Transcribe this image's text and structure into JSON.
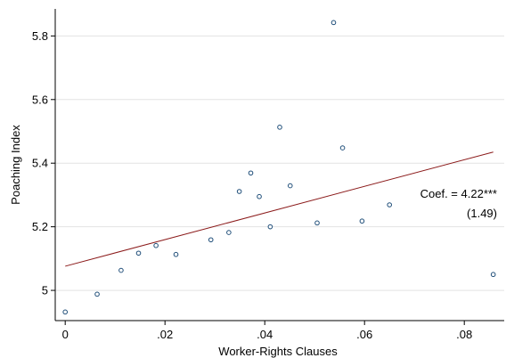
{
  "chart_data": {
    "type": "scatter",
    "xlabel": "Worker-Rights Clauses",
    "ylabel": "Poaching Index",
    "xlim": [
      -0.002,
      0.088
    ],
    "ylim": [
      4.905,
      5.885
    ],
    "x_ticks": [
      0,
      0.02,
      0.04,
      0.06,
      0.08
    ],
    "x_tick_labels": [
      "0",
      ".02",
      ".04",
      ".06",
      ".08"
    ],
    "y_ticks": [
      5,
      5.2,
      5.4,
      5.6,
      5.8
    ],
    "y_tick_labels": [
      "5",
      "5.2",
      "5.4",
      "5.6",
      "5.8"
    ],
    "grid": true,
    "points": [
      {
        "x": 0.0,
        "y": 4.932
      },
      {
        "x": 0.0064,
        "y": 4.988
      },
      {
        "x": 0.0112,
        "y": 5.063
      },
      {
        "x": 0.0147,
        "y": 5.117
      },
      {
        "x": 0.0182,
        "y": 5.141
      },
      {
        "x": 0.0222,
        "y": 5.113
      },
      {
        "x": 0.0292,
        "y": 5.159
      },
      {
        "x": 0.0328,
        "y": 5.182
      },
      {
        "x": 0.0349,
        "y": 5.311
      },
      {
        "x": 0.0372,
        "y": 5.369
      },
      {
        "x": 0.0389,
        "y": 5.295
      },
      {
        "x": 0.0411,
        "y": 5.2
      },
      {
        "x": 0.043,
        "y": 5.513
      },
      {
        "x": 0.0451,
        "y": 5.329
      },
      {
        "x": 0.0505,
        "y": 5.212
      },
      {
        "x": 0.0538,
        "y": 5.842
      },
      {
        "x": 0.0556,
        "y": 5.448
      },
      {
        "x": 0.0595,
        "y": 5.218
      },
      {
        "x": 0.065,
        "y": 5.269
      },
      {
        "x": 0.0858,
        "y": 5.05
      }
    ],
    "fit_line": {
      "x": [
        0.0,
        0.0858
      ],
      "y": [
        5.076,
        5.435
      ]
    },
    "annotation": {
      "line1": "Coef. = 4.22***",
      "line2": "(1.49)"
    },
    "colors": {
      "points": "#1f4e79",
      "fit_line": "#8b1a1a",
      "grid": "#e3e3e3",
      "axis": "#000000"
    }
  }
}
